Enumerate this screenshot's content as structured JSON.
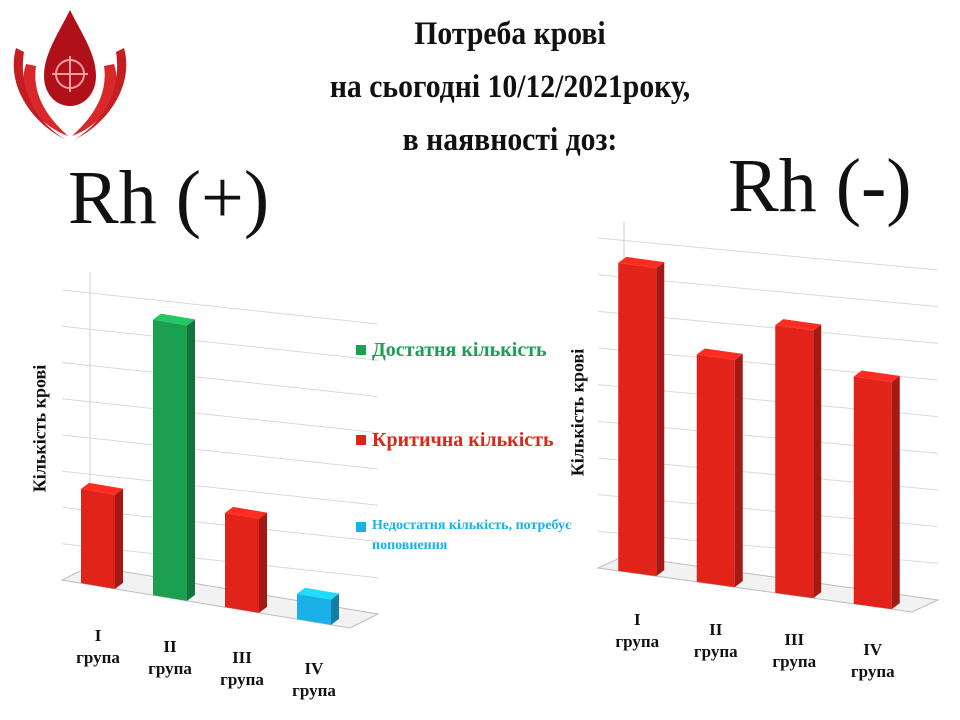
{
  "title": {
    "line1": "Потреба крові",
    "line2": "на сьогодні 10/12/2021року,",
    "line3": "в наявності доз:"
  },
  "logo": {
    "icon": "blood-drop-hands-icon"
  },
  "colors": {
    "sufficient": "#1aa050",
    "critical": "#e2231a",
    "insufficient": "#1ab0e8"
  },
  "legend": {
    "sufficient": "Достатня кількість",
    "critical": "Критична кількість",
    "insufficient": "Недостатня кількість, потребує поповнення"
  },
  "chart_data": [
    {
      "type": "bar",
      "title": "Rh (+)",
      "ylabel": "Кількість крові",
      "categories": [
        [
          "I",
          "група"
        ],
        [
          "II",
          "група"
        ],
        [
          "III",
          "група"
        ],
        [
          "IV",
          "група"
        ]
      ],
      "values": [
        2.6,
        7.6,
        2.6,
        0.7
      ],
      "status": [
        "critical",
        "sufficient",
        "critical",
        "insufficient"
      ],
      "ylim": [
        0,
        8
      ],
      "grid": true,
      "legend_position": "right"
    },
    {
      "type": "bar",
      "title": "Rh (-)",
      "ylabel": "Кількість крові",
      "categories": [
        [
          "I",
          "група"
        ],
        [
          "II",
          "група"
        ],
        [
          "III",
          "група"
        ],
        [
          "IV",
          "група"
        ]
      ],
      "values": [
        8.4,
        6.2,
        7.3,
        6.2
      ],
      "status": [
        "critical",
        "critical",
        "critical",
        "critical"
      ],
      "ylim": [
        0,
        9
      ],
      "grid": true
    }
  ]
}
